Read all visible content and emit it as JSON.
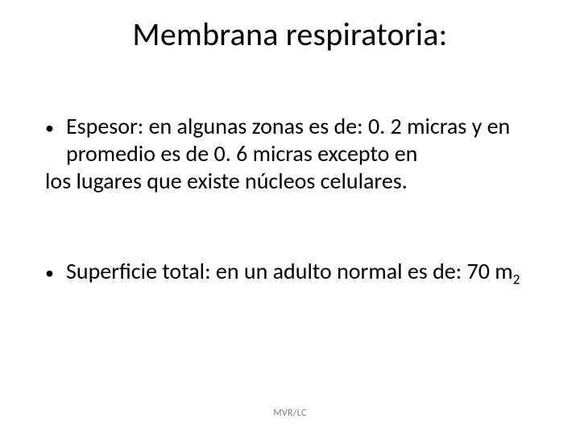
{
  "title": "Membrana respiratoria:",
  "bullets": [
    {
      "lead": "Espesor: en algunas zonas es de: 0. 2 micras y en promedio es de 0. 6 micras excepto en",
      "cont": "los lugares que existe núcleos celulares."
    },
    {
      "lead_before_sub": "Superficie total: en un adulto normal es de: 70 m",
      "sub": "2"
    }
  ],
  "footer": "MVR/LC",
  "colors": {
    "text": "#000000",
    "footer": "#7f7f7f",
    "background": "#ffffff"
  },
  "fontsize": {
    "title": 40,
    "body": 28,
    "footer": 12
  }
}
